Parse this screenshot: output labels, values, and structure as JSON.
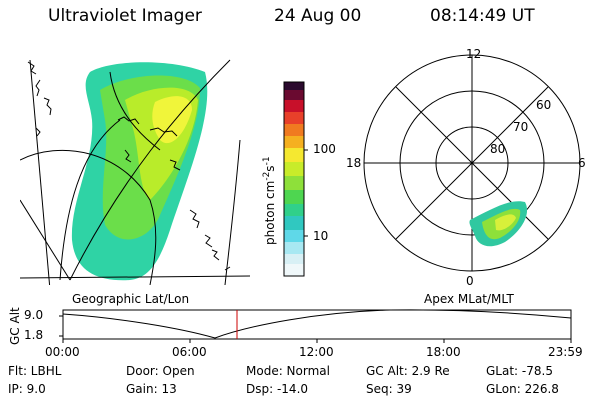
{
  "header": {
    "instrument": "Ultraviolet Imager",
    "date": "24 Aug 00",
    "time": "08:14:49 UT"
  },
  "geo_panel": {
    "caption": "Geographic Lat/Lon"
  },
  "colorbar": {
    "ticks": [
      "100",
      "10"
    ],
    "units_label": "photon cm",
    "units_sup1": "-2",
    "units_mid": "s",
    "units_sup2": "-1"
  },
  "polar_panel": {
    "caption": "Apex MLat/MLT",
    "mlt_labels": {
      "top": "12",
      "left": "18",
      "right": "6",
      "bottom": "0"
    },
    "lat_labels": [
      "60",
      "70",
      "80"
    ]
  },
  "timeline": {
    "ylabel": "GC Alt",
    "y_ticks": [
      "9.0",
      "1.8"
    ],
    "x_ticks": [
      "00:00",
      "06:00",
      "12:00",
      "18:00",
      "23:59"
    ],
    "current_marker_time": "08:14",
    "marker_color": "#cc0000"
  },
  "info": {
    "col1": [
      "Flt: LBHL",
      "IP:  9.0"
    ],
    "col2": [
      "Door: Open",
      "Gain: 13"
    ],
    "col3": [
      "Mode: Normal",
      "Dsp:  -14.0"
    ],
    "col4": [
      "GC Alt: 2.9 Re",
      "Seq: 39"
    ],
    "col5": [
      "GLat: -78.5",
      "GLon: 226.8"
    ]
  }
}
